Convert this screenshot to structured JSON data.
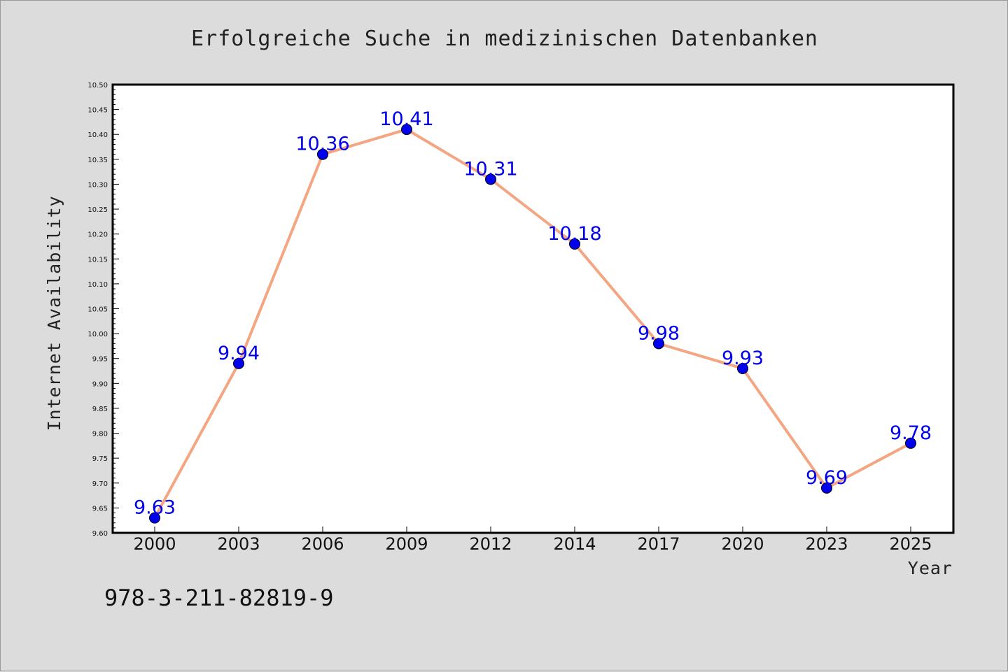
{
  "chart_data": {
    "type": "line",
    "title": "Erfolgreiche Suche in medizinischen Datenbanken",
    "xlabel": "Year",
    "ylabel": "Internet Availability",
    "categories": [
      "2000",
      "2003",
      "2006",
      "2009",
      "2012",
      "2014",
      "2017",
      "2020",
      "2023",
      "2025"
    ],
    "series": [
      {
        "values": [
          9.63,
          9.94,
          10.36,
          10.41,
          10.31,
          10.18,
          9.98,
          9.93,
          9.69,
          9.78
        ],
        "line_color": "#f4a582",
        "marker_color": "#0000ee"
      }
    ],
    "data_labels": [
      "9.63",
      "9.94",
      "10.36",
      "10.41",
      "10.31",
      "10.18",
      "9.98",
      "9.93",
      "9.69",
      "9.78"
    ],
    "ylim": [
      9.6,
      10.5
    ],
    "yticks": [
      "9.60",
      "9.65",
      "9.70",
      "9.75",
      "9.80",
      "9.85",
      "9.90",
      "9.95",
      "10.00",
      "10.05",
      "10.10",
      "10.15",
      "10.20",
      "10.25",
      "10.30",
      "10.35",
      "10.40",
      "10.45",
      "10.50"
    ],
    "grid": false,
    "legend": "none",
    "annotation": "978-3-211-82819-9"
  }
}
